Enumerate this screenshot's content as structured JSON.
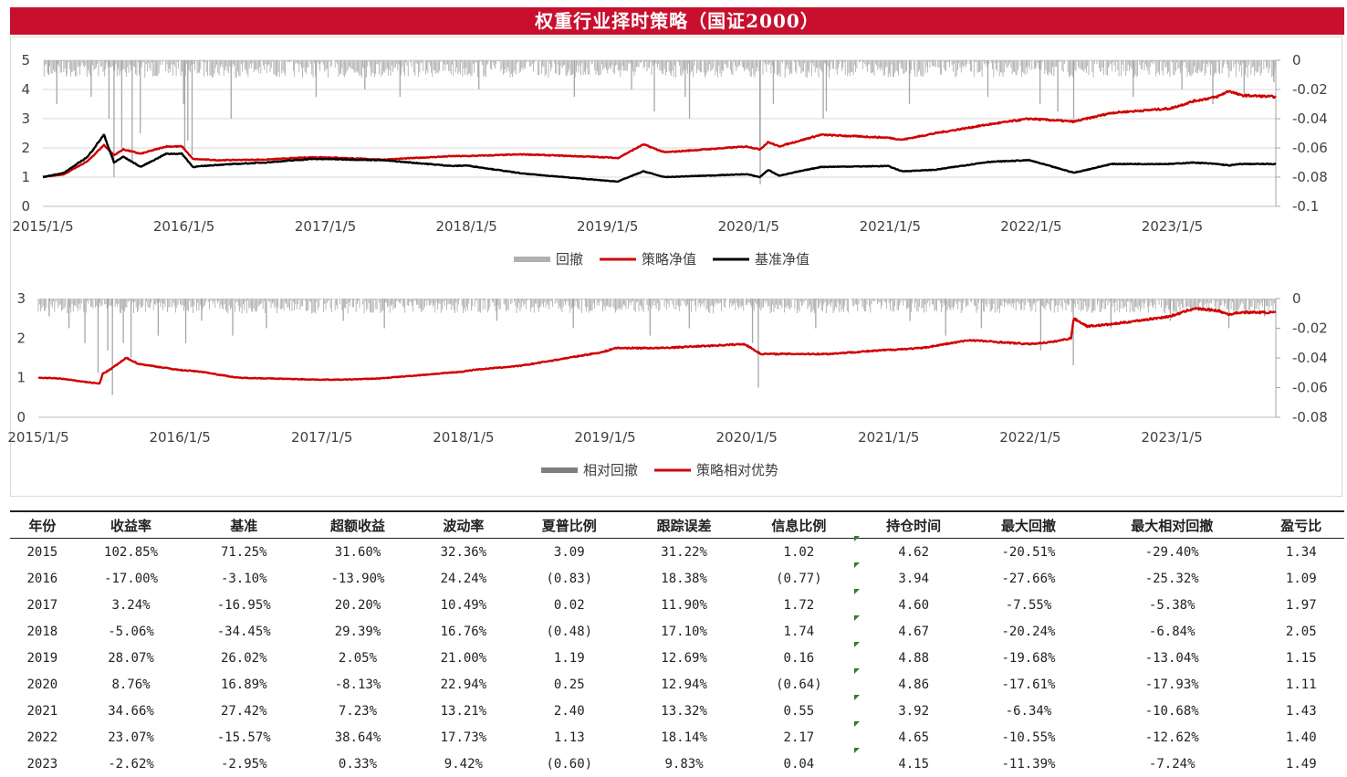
{
  "title": "权重行业择时策略（国证2000）",
  "colors": {
    "strategy": "#d00000",
    "benchmark": "#000000",
    "drawdown": "#a6a6a6",
    "title_bg": "#c8102e"
  },
  "chart_data": [
    {
      "type": "line",
      "x_tick_labels": [
        "2015/1/5",
        "2016/1/5",
        "2017/1/5",
        "2018/1/5",
        "2019/1/5",
        "2020/1/5",
        "2021/1/5",
        "2022/1/5",
        "2023/1/5"
      ],
      "x_range": [
        "2015/1/5",
        "2023/9/30"
      ],
      "ylim_left": [
        0,
        5
      ],
      "y_ticks_left": [
        "0",
        "1",
        "2",
        "3",
        "4",
        "5"
      ],
      "ylim_right": [
        -0.1,
        0
      ],
      "y_ticks_right": [
        "0",
        "-0.02",
        "-0.04",
        "-0.06",
        "-0.08",
        "-0.1"
      ],
      "legend": {
        "drawdown": "回撤",
        "strategy": "策略净值",
        "benchmark": "基准净值"
      },
      "legend_position": "bottom",
      "grid": true,
      "series": [
        {
          "name": "策略净值",
          "axis": "left",
          "points": [
            [
              "2015/1/5",
              1.0
            ],
            [
              "2015/3/1",
              1.1
            ],
            [
              "2015/5/1",
              1.55
            ],
            [
              "2015/6/12",
              2.1
            ],
            [
              "2015/7/8",
              1.75
            ],
            [
              "2015/8/1",
              1.95
            ],
            [
              "2015/9/15",
              1.8
            ],
            [
              "2015/11/20",
              2.05
            ],
            [
              "2015/12/31",
              2.05
            ],
            [
              "2016/1/28",
              1.62
            ],
            [
              "2016/4/1",
              1.58
            ],
            [
              "2016/8/1",
              1.6
            ],
            [
              "2016/11/30",
              1.68
            ],
            [
              "2017/1/5",
              1.68
            ],
            [
              "2017/6/1",
              1.6
            ],
            [
              "2017/12/1",
              1.72
            ],
            [
              "2018/1/5",
              1.72
            ],
            [
              "2018/6/1",
              1.78
            ],
            [
              "2018/12/31",
              1.68
            ],
            [
              "2019/1/31",
              1.65
            ],
            [
              "2019/4/8",
              2.12
            ],
            [
              "2019/6/1",
              1.85
            ],
            [
              "2019/12/31",
              2.05
            ],
            [
              "2020/2/3",
              1.95
            ],
            [
              "2020/2/25",
              2.2
            ],
            [
              "2020/3/23",
              2.05
            ],
            [
              "2020/7/10",
              2.45
            ],
            [
              "2020/12/31",
              2.35
            ],
            [
              "2021/2/5",
              2.28
            ],
            [
              "2021/5/1",
              2.5
            ],
            [
              "2021/9/15",
              2.8
            ],
            [
              "2021/12/31",
              3.0
            ],
            [
              "2022/4/26",
              2.9
            ],
            [
              "2022/8/1",
              3.2
            ],
            [
              "2022/12/31",
              3.35
            ],
            [
              "2023/3/1",
              3.6
            ],
            [
              "2023/5/1",
              3.75
            ],
            [
              "2023/6/1",
              3.95
            ],
            [
              "2023/7/1",
              3.8
            ],
            [
              "2023/9/30",
              3.75
            ]
          ]
        },
        {
          "name": "基准净值",
          "axis": "left",
          "points": [
            [
              "2015/1/5",
              1.0
            ],
            [
              "2015/3/1",
              1.15
            ],
            [
              "2015/5/1",
              1.7
            ],
            [
              "2015/6/12",
              2.45
            ],
            [
              "2015/7/8",
              1.5
            ],
            [
              "2015/8/1",
              1.7
            ],
            [
              "2015/9/15",
              1.35
            ],
            [
              "2015/11/20",
              1.8
            ],
            [
              "2015/12/31",
              1.8
            ],
            [
              "2016/1/28",
              1.35
            ],
            [
              "2016/4/1",
              1.42
            ],
            [
              "2016/8/1",
              1.5
            ],
            [
              "2016/11/30",
              1.62
            ],
            [
              "2017/1/5",
              1.62
            ],
            [
              "2017/6/1",
              1.58
            ],
            [
              "2017/12/1",
              1.38
            ],
            [
              "2018/1/5",
              1.4
            ],
            [
              "2018/6/1",
              1.12
            ],
            [
              "2018/12/31",
              0.88
            ],
            [
              "2019/1/31",
              0.85
            ],
            [
              "2019/4/8",
              1.2
            ],
            [
              "2019/6/1",
              1.0
            ],
            [
              "2019/12/31",
              1.1
            ],
            [
              "2020/2/3",
              1.0
            ],
            [
              "2020/2/25",
              1.25
            ],
            [
              "2020/3/23",
              1.05
            ],
            [
              "2020/7/10",
              1.35
            ],
            [
              "2020/12/31",
              1.38
            ],
            [
              "2021/2/5",
              1.2
            ],
            [
              "2021/5/1",
              1.25
            ],
            [
              "2021/9/15",
              1.52
            ],
            [
              "2021/12/31",
              1.58
            ],
            [
              "2022/4/26",
              1.15
            ],
            [
              "2022/8/1",
              1.45
            ],
            [
              "2022/12/31",
              1.45
            ],
            [
              "2023/3/1",
              1.5
            ],
            [
              "2023/5/1",
              1.45
            ],
            [
              "2023/6/1",
              1.4
            ],
            [
              "2023/7/1",
              1.45
            ],
            [
              "2023/9/30",
              1.45
            ]
          ]
        },
        {
          "name": "回撤",
          "axis": "right",
          "type": "area",
          "spikes": [
            [
              "2015/1/20",
              -0.01
            ],
            [
              "2015/2/10",
              -0.03
            ],
            [
              "2015/5/10",
              -0.025
            ],
            [
              "2015/6/25",
              -0.04
            ],
            [
              "2015/7/8",
              -0.08
            ],
            [
              "2015/7/28",
              -0.06
            ],
            [
              "2015/8/24",
              -0.07
            ],
            [
              "2015/9/14",
              -0.05
            ],
            [
              "2016/1/4",
              -0.03
            ],
            [
              "2016/1/7",
              -0.06
            ],
            [
              "2016/1/15",
              -0.055
            ],
            [
              "2016/1/26",
              -0.065
            ],
            [
              "2016/5/6",
              -0.04
            ],
            [
              "2016/12/12",
              -0.025
            ],
            [
              "2017/4/17",
              -0.02
            ],
            [
              "2017/7/17",
              -0.025
            ],
            [
              "2018/2/6",
              -0.02
            ],
            [
              "2018/10/11",
              -0.025
            ],
            [
              "2019/3/8",
              -0.02
            ],
            [
              "2019/5/6",
              -0.035
            ],
            [
              "2019/7/25",
              -0.025
            ],
            [
              "2019/8/5",
              -0.04
            ],
            [
              "2020/2/3",
              -0.06
            ],
            [
              "2020/2/4",
              -0.085
            ],
            [
              "2020/3/9",
              -0.03
            ],
            [
              "2020/7/16",
              -0.04
            ],
            [
              "2020/7/24",
              -0.035
            ],
            [
              "2021/2/24",
              -0.03
            ],
            [
              "2021/9/15",
              -0.025
            ],
            [
              "2022/1/28",
              -0.03
            ],
            [
              "2022/3/15",
              -0.035
            ],
            [
              "2022/4/25",
              -0.04
            ],
            [
              "2022/9/26",
              -0.025
            ],
            [
              "2023/1/30",
              -0.02
            ],
            [
              "2023/4/20",
              -0.03
            ],
            [
              "2023/7/10",
              -0.025
            ],
            [
              "2023/9/25",
              -0.015
            ]
          ]
        }
      ]
    },
    {
      "type": "line",
      "x_tick_labels": [
        "2015/1/5",
        "2016/1/5",
        "2017/1/5",
        "2018/1/5",
        "2019/1/5",
        "2020/1/5",
        "2021/1/5",
        "2022/1/5",
        "2023/1/5"
      ],
      "x_range": [
        "2015/1/5",
        "2023/9/30"
      ],
      "ylim_left": [
        0,
        3
      ],
      "y_ticks_left": [
        "0",
        "1",
        "2",
        "3"
      ],
      "ylim_right": [
        -0.08,
        0
      ],
      "y_ticks_right": [
        "0",
        "-0.02",
        "-0.04",
        "-0.06",
        "-0.08"
      ],
      "legend": {
        "drawdown": "相对回撤",
        "strategy": "策略相对优势"
      },
      "legend_position": "bottom",
      "grid": false,
      "series": [
        {
          "name": "策略相对优势",
          "axis": "left",
          "points": [
            [
              "2015/1/5",
              1.0
            ],
            [
              "2015/3/1",
              0.98
            ],
            [
              "2015/5/1",
              0.9
            ],
            [
              "2015/6/12",
              0.85
            ],
            [
              "2015/6/20",
              1.1
            ],
            [
              "2015/7/8",
              1.2
            ],
            [
              "2015/8/20",
              1.5
            ],
            [
              "2015/9/20",
              1.35
            ],
            [
              "2015/12/31",
              1.2
            ],
            [
              "2016/3/1",
              1.15
            ],
            [
              "2016/6/1",
              1.0
            ],
            [
              "2016/12/31",
              0.95
            ],
            [
              "2017/3/1",
              0.95
            ],
            [
              "2017/6/1",
              0.98
            ],
            [
              "2017/12/31",
              1.15
            ],
            [
              "2018/2/1",
              1.2
            ],
            [
              "2018/6/1",
              1.3
            ],
            [
              "2018/12/31",
              1.65
            ],
            [
              "2019/1/31",
              1.75
            ],
            [
              "2019/6/1",
              1.75
            ],
            [
              "2019/12/31",
              1.85
            ],
            [
              "2020/2/10",
              1.6
            ],
            [
              "2020/5/1",
              1.6
            ],
            [
              "2020/8/1",
              1.6
            ],
            [
              "2020/12/31",
              1.7
            ],
            [
              "2021/4/1",
              1.75
            ],
            [
              "2021/8/1",
              1.95
            ],
            [
              "2021/12/31",
              1.85
            ],
            [
              "2022/3/1",
              1.9
            ],
            [
              "2022/4/20",
              2.0
            ],
            [
              "2022/4/27",
              2.5
            ],
            [
              "2022/6/1",
              2.3
            ],
            [
              "2022/8/1",
              2.35
            ],
            [
              "2022/12/31",
              2.55
            ],
            [
              "2023/2/1",
              2.65
            ],
            [
              "2023/3/1",
              2.75
            ],
            [
              "2023/5/1",
              2.7
            ],
            [
              "2023/6/1",
              2.6
            ],
            [
              "2023/7/1",
              2.65
            ],
            [
              "2023/9/30",
              2.65
            ]
          ]
        },
        {
          "name": "相对回撤",
          "axis": "right",
          "type": "area",
          "spikes": [
            [
              "2015/2/2",
              -0.012
            ],
            [
              "2015/3/25",
              -0.02
            ],
            [
              "2015/5/5",
              -0.03
            ],
            [
              "2015/6/8",
              -0.05
            ],
            [
              "2015/7/3",
              -0.035
            ],
            [
              "2015/7/15",
              -0.065
            ],
            [
              "2015/8/12",
              -0.03
            ],
            [
              "2015/9/1",
              -0.04
            ],
            [
              "2015/11/10",
              -0.025
            ],
            [
              "2016/1/20",
              -0.03
            ],
            [
              "2016/3/1",
              -0.015
            ],
            [
              "2016/5/20",
              -0.025
            ],
            [
              "2016/8/15",
              -0.02
            ],
            [
              "2017/3/1",
              -0.015
            ],
            [
              "2017/6/15",
              -0.02
            ],
            [
              "2018/4/1",
              -0.015
            ],
            [
              "2018/10/15",
              -0.02
            ],
            [
              "2019/5/1",
              -0.025
            ],
            [
              "2019/8/10",
              -0.02
            ],
            [
              "2020/1/20",
              -0.03
            ],
            [
              "2020/2/4",
              -0.06
            ],
            [
              "2020/7/1",
              -0.02
            ],
            [
              "2021/3/1",
              -0.015
            ],
            [
              "2021/6/1",
              -0.025
            ],
            [
              "2021/9/1",
              -0.02
            ],
            [
              "2022/2/1",
              -0.035
            ],
            [
              "2022/4/26",
              -0.045
            ],
            [
              "2022/8/1",
              -0.02
            ],
            [
              "2023/1/1",
              -0.015
            ],
            [
              "2023/6/1",
              -0.02
            ],
            [
              "2023/9/1",
              -0.012
            ]
          ]
        }
      ]
    },
    {
      "type": "table",
      "headers": [
        "年份",
        "收益率",
        "基准",
        "超额收益",
        "波动率",
        "夏普比例",
        "跟踪误差",
        "信息比例",
        "持仓时间",
        "最大回撤",
        "最大相对回撤",
        "盈亏比"
      ],
      "rows": [
        [
          "2015",
          "102.85%",
          "71.25%",
          "31.60%",
          "32.36%",
          "3.09",
          "31.22%",
          "1.02",
          "4.62",
          "-20.51%",
          "-29.40%",
          "1.34"
        ],
        [
          "2016",
          "-17.00%",
          "-3.10%",
          "-13.90%",
          "24.24%",
          "(0.83)",
          "18.38%",
          "(0.77)",
          "3.94",
          "-27.66%",
          "-25.32%",
          "1.09"
        ],
        [
          "2017",
          "3.24%",
          "-16.95%",
          "20.20%",
          "10.49%",
          "0.02",
          "11.90%",
          "1.72",
          "4.60",
          "-7.55%",
          "-5.38%",
          "1.97"
        ],
        [
          "2018",
          "-5.06%",
          "-34.45%",
          "29.39%",
          "16.76%",
          "(0.48)",
          "17.10%",
          "1.74",
          "4.67",
          "-20.24%",
          "-6.84%",
          "2.05"
        ],
        [
          "2019",
          "28.07%",
          "26.02%",
          "2.05%",
          "21.00%",
          "1.19",
          "12.69%",
          "0.16",
          "4.88",
          "-19.68%",
          "-13.04%",
          "1.15"
        ],
        [
          "2020",
          "8.76%",
          "16.89%",
          "-8.13%",
          "22.94%",
          "0.25",
          "12.94%",
          "(0.64)",
          "4.86",
          "-17.61%",
          "-17.93%",
          "1.11"
        ],
        [
          "2021",
          "34.66%",
          "27.42%",
          "7.23%",
          "13.21%",
          "2.40",
          "13.32%",
          "0.55",
          "3.92",
          "-6.34%",
          "-10.68%",
          "1.43"
        ],
        [
          "2022",
          "23.07%",
          "-15.57%",
          "38.64%",
          "17.73%",
          "1.13",
          "18.14%",
          "2.17",
          "4.65",
          "-10.55%",
          "-12.62%",
          "1.40"
        ],
        [
          "2023",
          "-2.62%",
          "-2.95%",
          "0.33%",
          "9.42%",
          "(0.60)",
          "9.83%",
          "0.04",
          "4.15",
          "-11.39%",
          "-7.24%",
          "1.49"
        ]
      ]
    }
  ]
}
